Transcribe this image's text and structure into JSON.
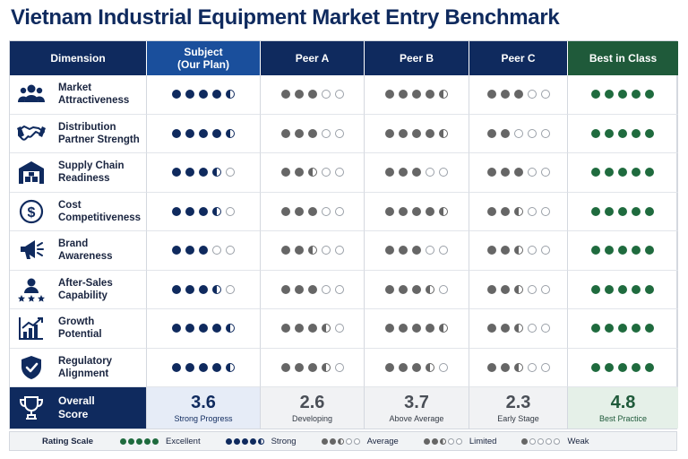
{
  "title": "Vietnam Industrial Equipment Market Entry Benchmark",
  "colors": {
    "navy": "#0f2a5e",
    "grey": "#666666",
    "green": "#1f6b3e",
    "subject_header": "#1a4f9c",
    "best_header": "#1f5a3a"
  },
  "headers": {
    "dimension": "Dimension",
    "subject": "Subject\n(Our Plan)",
    "peer_a": "Peer A",
    "peer_b": "Peer B",
    "peer_c": "Peer C",
    "best": "Best in Class"
  },
  "rows": [
    {
      "icon": "people-group-icon",
      "label": "Market\nAttractiveness",
      "ratings": [
        4.5,
        3,
        4.5,
        3,
        5
      ]
    },
    {
      "icon": "handshake-icon",
      "label": "Distribution\nPartner Strength",
      "ratings": [
        4.5,
        3,
        4.5,
        2,
        5
      ]
    },
    {
      "icon": "warehouse-icon",
      "label": "Supply Chain\nReadiness",
      "ratings": [
        3.5,
        2.5,
        3,
        3,
        5
      ]
    },
    {
      "icon": "dollar-coin-icon",
      "label": "Cost\nCompetitiveness",
      "ratings": [
        3.5,
        3,
        4.5,
        2.5,
        5
      ]
    },
    {
      "icon": "megaphone-icon",
      "label": "Brand\nAwareness",
      "ratings": [
        3,
        2.5,
        3,
        2.5,
        5
      ]
    },
    {
      "icon": "person-stars-icon",
      "label": "After-Sales\nCapability",
      "ratings": [
        3.5,
        3,
        3.5,
        2.5,
        5
      ]
    },
    {
      "icon": "growth-chart-icon",
      "label": "Growth\nPotential",
      "ratings": [
        4.5,
        3.5,
        4.5,
        2.5,
        5
      ]
    },
    {
      "icon": "shield-check-icon",
      "label": "Regulatory\nAlignment",
      "ratings": [
        4.5,
        3.5,
        3.5,
        2.5,
        5
      ]
    }
  ],
  "overall": {
    "icon": "trophy-icon",
    "label": "Overall\nScore",
    "scores": [
      {
        "value": "3.6",
        "desc": "Strong Progress"
      },
      {
        "value": "2.6",
        "desc": "Developing"
      },
      {
        "value": "3.7",
        "desc": "Above Average"
      },
      {
        "value": "2.3",
        "desc": "Early Stage"
      },
      {
        "value": "4.8",
        "desc": "Best Practice"
      }
    ]
  },
  "legend": {
    "title": "Rating Scale",
    "items": [
      {
        "label": "Excellent",
        "rating": 5,
        "color": "#1f6b3e"
      },
      {
        "label": "Strong",
        "rating": 4.5,
        "color": "#0f2a5e"
      },
      {
        "label": "Average",
        "rating": 2.5,
        "color": "#666666"
      },
      {
        "label": "Limited",
        "rating": 2.5,
        "color": "#666666"
      },
      {
        "label": "Weak",
        "rating": 1,
        "color": "#666666"
      }
    ]
  }
}
